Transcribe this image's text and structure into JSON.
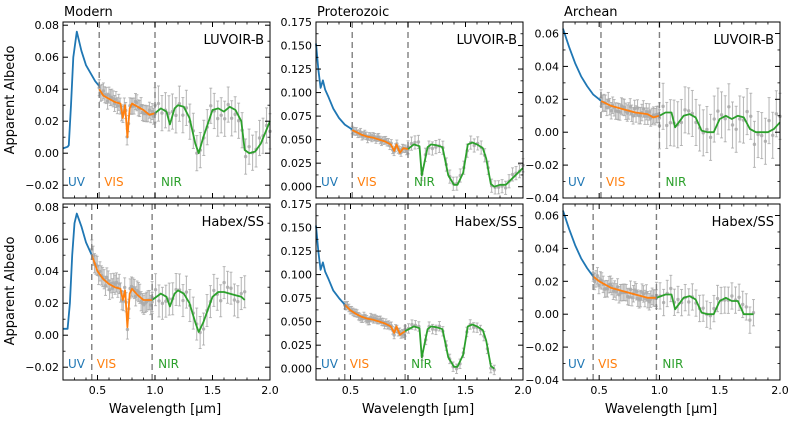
{
  "figure": {
    "ylabel": "Apparent Albedo",
    "xlabel": "Wavelength [μm]",
    "colors": {
      "uv": "#1f77b4",
      "vis": "#ff7f0e",
      "nir": "#2ca02c",
      "obs": "#a9a9a9",
      "boundary": "#808080"
    },
    "band_labels": {
      "uv": "UV",
      "vis": "VIS",
      "nir": "NIR"
    }
  },
  "chart_data": [
    {
      "id": "modern-luvoir",
      "type": "line",
      "title": "Modern",
      "inset": "LUVOIR-B",
      "xlim": [
        0.2,
        2.0
      ],
      "ylim": [
        -0.028,
        0.082
      ],
      "xticks": [
        0.5,
        1.0,
        1.5,
        2.0
      ],
      "yticks": [
        -0.02,
        0.0,
        0.02,
        0.04,
        0.06,
        0.08
      ],
      "ytick_labels": [
        "−0.02",
        "0.00",
        "0.02",
        "0.04",
        "0.06",
        "0.08"
      ],
      "band_edges": [
        0.515,
        1.0
      ],
      "uv": {
        "x": [
          0.2,
          0.24,
          0.25,
          0.27,
          0.29,
          0.32,
          0.36,
          0.4,
          0.44,
          0.48,
          0.515
        ],
        "y": [
          0.003,
          0.004,
          0.005,
          0.03,
          0.06,
          0.076,
          0.064,
          0.055,
          0.05,
          0.045,
          0.042
        ]
      },
      "vis": {
        "x": [
          0.515,
          0.55,
          0.6,
          0.65,
          0.7,
          0.72,
          0.74,
          0.76,
          0.78,
          0.8,
          0.85,
          0.9,
          0.95,
          1.0
        ],
        "y": [
          0.04,
          0.036,
          0.034,
          0.032,
          0.031,
          0.022,
          0.03,
          0.01,
          0.028,
          0.031,
          0.029,
          0.027,
          0.024,
          0.025
        ]
      },
      "nir": {
        "x": [
          1.0,
          1.05,
          1.1,
          1.13,
          1.17,
          1.2,
          1.25,
          1.3,
          1.35,
          1.38,
          1.42,
          1.5,
          1.55,
          1.6,
          1.65,
          1.7,
          1.75,
          1.78,
          1.82,
          1.87,
          1.92,
          2.0
        ],
        "y": [
          0.025,
          0.028,
          0.026,
          0.018,
          0.028,
          0.03,
          0.029,
          0.022,
          0.006,
          0.0,
          0.01,
          0.027,
          0.028,
          0.026,
          0.029,
          0.027,
          0.02,
          0.002,
          0.0,
          0.001,
          0.006,
          0.02
        ]
      },
      "obs_ranges": [
        [
          0.515,
          1.0
        ],
        [
          1.0,
          2.0
        ]
      ],
      "obs_sigma": [
        0.005,
        0.011
      ]
    },
    {
      "id": "proterozoic-luvoir",
      "type": "line",
      "title": "Proterozoic",
      "inset": "LUVOIR-B",
      "xlim": [
        0.2,
        2.0
      ],
      "ylim": [
        -0.012,
        0.175
      ],
      "xticks": [
        0.5,
        1.0,
        1.5,
        2.0
      ],
      "yticks": [
        0.0,
        0.025,
        0.05,
        0.075,
        0.1,
        0.125,
        0.15,
        0.175
      ],
      "ytick_labels": [
        "0.000",
        "0.025",
        "0.050",
        "0.075",
        "0.100",
        "0.125",
        "0.150",
        "0.175"
      ],
      "band_edges": [
        0.515,
        1.0
      ],
      "uv": {
        "x": [
          0.2,
          0.22,
          0.24,
          0.26,
          0.28,
          0.31,
          0.35,
          0.4,
          0.45,
          0.5,
          0.515
        ],
        "y": [
          0.152,
          0.125,
          0.105,
          0.113,
          0.103,
          0.095,
          0.083,
          0.073,
          0.066,
          0.062,
          0.061
        ]
      },
      "vis": {
        "x": [
          0.515,
          0.55,
          0.6,
          0.65,
          0.7,
          0.75,
          0.8,
          0.85,
          0.88,
          0.9,
          0.93,
          0.96,
          1.0
        ],
        "y": [
          0.06,
          0.058,
          0.055,
          0.053,
          0.052,
          0.05,
          0.048,
          0.045,
          0.038,
          0.045,
          0.036,
          0.041,
          0.04
        ]
      },
      "nir": {
        "x": [
          1.0,
          1.05,
          1.1,
          1.12,
          1.17,
          1.2,
          1.25,
          1.3,
          1.35,
          1.4,
          1.43,
          1.48,
          1.52,
          1.56,
          1.6,
          1.65,
          1.68,
          1.72,
          1.75,
          1.8,
          1.85,
          1.9,
          2.0
        ],
        "y": [
          0.04,
          0.045,
          0.043,
          0.012,
          0.042,
          0.045,
          0.044,
          0.042,
          0.012,
          0.002,
          0.002,
          0.015,
          0.045,
          0.047,
          0.045,
          0.041,
          0.03,
          0.003,
          0.0,
          0.002,
          0.002,
          0.008,
          0.02
        ]
      },
      "obs_ranges": [
        [
          0.515,
          1.0
        ],
        [
          1.0,
          2.0
        ]
      ],
      "obs_sigma": [
        0.004,
        0.007
      ]
    },
    {
      "id": "archean-luvoir",
      "type": "line",
      "title": "Archean",
      "inset": "LUVOIR-B",
      "xlim": [
        0.2,
        2.0
      ],
      "ylim": [
        -0.04,
        0.067
      ],
      "xticks": [
        0.5,
        1.0,
        1.5,
        2.0
      ],
      "yticks": [
        -0.04,
        -0.02,
        0.0,
        0.02,
        0.04,
        0.06
      ],
      "ytick_labels": [
        "−0.04",
        "−0.02",
        "0.00",
        "0.02",
        "0.04",
        "0.06"
      ],
      "band_edges": [
        0.515,
        1.0
      ],
      "uv": {
        "x": [
          0.2,
          0.25,
          0.3,
          0.35,
          0.4,
          0.45,
          0.5,
          0.515
        ],
        "y": [
          0.063,
          0.052,
          0.042,
          0.034,
          0.028,
          0.023,
          0.02,
          0.019
        ]
      },
      "vis": {
        "x": [
          0.515,
          0.6,
          0.7,
          0.8,
          0.9,
          0.95,
          1.0
        ],
        "y": [
          0.019,
          0.016,
          0.014,
          0.012,
          0.011,
          0.009,
          0.01
        ]
      },
      "nir": {
        "x": [
          1.0,
          1.05,
          1.1,
          1.13,
          1.2,
          1.25,
          1.3,
          1.35,
          1.4,
          1.45,
          1.5,
          1.55,
          1.6,
          1.65,
          1.7,
          1.75,
          1.8,
          1.85,
          1.9,
          1.95,
          2.0
        ],
        "y": [
          0.01,
          0.012,
          0.012,
          0.003,
          0.01,
          0.011,
          0.009,
          0.001,
          0.0,
          0.0,
          0.008,
          0.01,
          0.008,
          0.01,
          0.009,
          0.002,
          0.0,
          0.0,
          0.0,
          0.002,
          0.006
        ]
      },
      "obs_ranges": [
        [
          0.515,
          1.0
        ],
        [
          1.0,
          2.0
        ]
      ],
      "obs_sigma": [
        0.005,
        0.014
      ]
    },
    {
      "id": "modern-habex",
      "type": "line",
      "title": "",
      "inset": "Habex/SS",
      "xlim": [
        0.2,
        2.0
      ],
      "ylim": [
        -0.028,
        0.082
      ],
      "xticks": [
        0.5,
        1.0,
        1.5,
        2.0
      ],
      "yticks": [
        -0.02,
        0.0,
        0.02,
        0.04,
        0.06,
        0.08
      ],
      "ytick_labels": [
        "−0.02",
        "0.00",
        "0.02",
        "0.04",
        "0.06",
        "0.08"
      ],
      "band_edges": [
        0.45,
        0.975
      ],
      "uv": {
        "x": [
          0.2,
          0.24,
          0.26,
          0.28,
          0.3,
          0.32,
          0.36,
          0.4,
          0.45
        ],
        "y": [
          0.004,
          0.004,
          0.02,
          0.05,
          0.07,
          0.076,
          0.068,
          0.058,
          0.05
        ]
      },
      "vis": {
        "x": [
          0.45,
          0.5,
          0.55,
          0.6,
          0.65,
          0.7,
          0.72,
          0.74,
          0.76,
          0.78,
          0.8,
          0.85,
          0.9,
          0.975
        ],
        "y": [
          0.05,
          0.04,
          0.035,
          0.032,
          0.03,
          0.029,
          0.022,
          0.028,
          0.005,
          0.026,
          0.029,
          0.025,
          0.022,
          0.022
        ]
      },
      "nir": {
        "x": [
          0.975,
          1.05,
          1.1,
          1.13,
          1.17,
          1.2,
          1.25,
          1.3,
          1.35,
          1.38,
          1.42,
          1.5,
          1.55,
          1.6,
          1.65,
          1.7,
          1.75,
          1.78
        ],
        "y": [
          0.022,
          0.026,
          0.024,
          0.018,
          0.026,
          0.028,
          0.026,
          0.02,
          0.008,
          0.002,
          0.008,
          0.024,
          0.027,
          0.027,
          0.026,
          0.025,
          0.024,
          0.022
        ]
      },
      "obs_ranges": [
        [
          0.45,
          0.975
        ],
        [
          0.975,
          1.78
        ]
      ],
      "obs_sigma": [
        0.006,
        0.01
      ]
    },
    {
      "id": "proterozoic-habex",
      "type": "line",
      "title": "",
      "inset": "Habex/SS",
      "xlim": [
        0.2,
        2.0
      ],
      "ylim": [
        -0.012,
        0.175
      ],
      "xticks": [
        0.5,
        1.0,
        1.5,
        2.0
      ],
      "yticks": [
        0.0,
        0.025,
        0.05,
        0.075,
        0.1,
        0.125,
        0.15,
        0.175
      ],
      "ytick_labels": [
        "0.000",
        "0.025",
        "0.050",
        "0.075",
        "0.100",
        "0.125",
        "0.150",
        "0.175"
      ],
      "band_edges": [
        0.45,
        0.975
      ],
      "uv": {
        "x": [
          0.2,
          0.22,
          0.24,
          0.26,
          0.28,
          0.31,
          0.35,
          0.4,
          0.45
        ],
        "y": [
          0.152,
          0.125,
          0.105,
          0.113,
          0.103,
          0.095,
          0.083,
          0.075,
          0.068
        ]
      },
      "vis": {
        "x": [
          0.45,
          0.5,
          0.55,
          0.6,
          0.65,
          0.7,
          0.75,
          0.8,
          0.85,
          0.88,
          0.9,
          0.93,
          0.975
        ],
        "y": [
          0.068,
          0.062,
          0.058,
          0.055,
          0.053,
          0.052,
          0.05,
          0.048,
          0.045,
          0.038,
          0.045,
          0.036,
          0.04
        ]
      },
      "nir": {
        "x": [
          0.975,
          1.05,
          1.1,
          1.12,
          1.17,
          1.2,
          1.25,
          1.3,
          1.35,
          1.4,
          1.43,
          1.48,
          1.52,
          1.56,
          1.6,
          1.65,
          1.68,
          1.72,
          1.75
        ],
        "y": [
          0.04,
          0.045,
          0.043,
          0.012,
          0.042,
          0.045,
          0.044,
          0.042,
          0.012,
          0.002,
          0.002,
          0.015,
          0.045,
          0.047,
          0.045,
          0.041,
          0.03,
          0.003,
          0.0
        ]
      },
      "obs_ranges": [
        [
          0.45,
          0.975
        ],
        [
          0.975,
          1.75
        ]
      ],
      "obs_sigma": [
        0.004,
        0.005
      ]
    },
    {
      "id": "archean-habex",
      "type": "line",
      "title": "",
      "inset": "Habex/SS",
      "xlim": [
        0.2,
        2.0
      ],
      "ylim": [
        -0.04,
        0.067
      ],
      "xticks": [
        0.5,
        1.0,
        1.5,
        2.0
      ],
      "yticks": [
        -0.04,
        -0.02,
        0.0,
        0.02,
        0.04,
        0.06
      ],
      "ytick_labels": [
        "−0.04",
        "−0.02",
        "0.00",
        "0.02",
        "0.04",
        "0.06"
      ],
      "band_edges": [
        0.45,
        0.975
      ],
      "uv": {
        "x": [
          0.2,
          0.25,
          0.3,
          0.35,
          0.4,
          0.45
        ],
        "y": [
          0.063,
          0.052,
          0.042,
          0.034,
          0.028,
          0.023
        ]
      },
      "vis": {
        "x": [
          0.45,
          0.5,
          0.6,
          0.7,
          0.8,
          0.9,
          0.975
        ],
        "y": [
          0.023,
          0.02,
          0.016,
          0.014,
          0.012,
          0.01,
          0.01
        ]
      },
      "nir": {
        "x": [
          0.975,
          1.05,
          1.1,
          1.13,
          1.2,
          1.25,
          1.3,
          1.35,
          1.4,
          1.45,
          1.5,
          1.55,
          1.6,
          1.65,
          1.7,
          1.75,
          1.78
        ],
        "y": [
          0.01,
          0.012,
          0.012,
          0.003,
          0.01,
          0.011,
          0.009,
          0.001,
          0.0,
          0.0,
          0.008,
          0.01,
          0.008,
          0.008,
          0.0,
          0.0,
          0.0
        ]
      },
      "obs_ranges": [
        [
          0.45,
          0.975
        ],
        [
          0.975,
          1.78
        ]
      ],
      "obs_sigma": [
        0.005,
        0.008
      ]
    }
  ]
}
